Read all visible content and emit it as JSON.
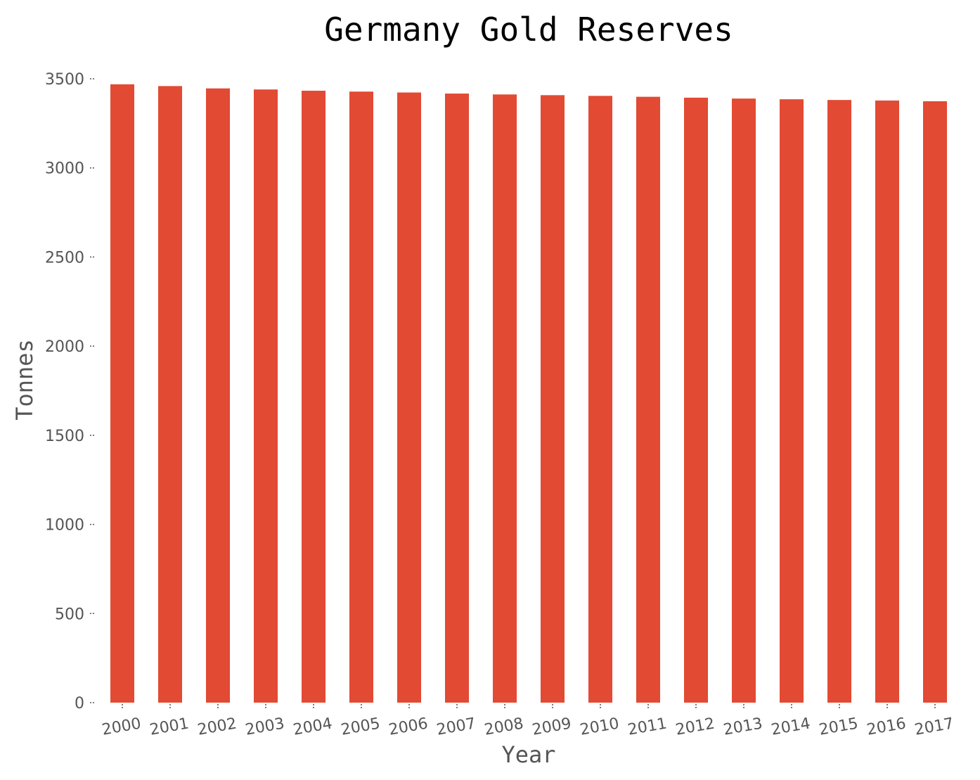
{
  "chart_data": {
    "type": "bar",
    "title": "Germany Gold Reserves",
    "xlabel": "Year",
    "ylabel": "Tonnes",
    "categories": [
      "2000",
      "2001",
      "2002",
      "2003",
      "2004",
      "2005",
      "2006",
      "2007",
      "2008",
      "2009",
      "2010",
      "2011",
      "2012",
      "2013",
      "2014",
      "2015",
      "2016",
      "2017"
    ],
    "values": [
      3469,
      3459,
      3446,
      3440,
      3433,
      3428,
      3423,
      3417,
      3412,
      3408,
      3404,
      3399,
      3394,
      3389,
      3385,
      3381,
      3378,
      3374
    ],
    "yticks": [
      0,
      500,
      1000,
      1500,
      2000,
      2500,
      3000,
      3500
    ],
    "ylim": [
      0,
      3500
    ],
    "grid": false,
    "legend": "none",
    "bar_color": "#e24a33",
    "text_color": "#555555",
    "title_color": "#000000"
  }
}
